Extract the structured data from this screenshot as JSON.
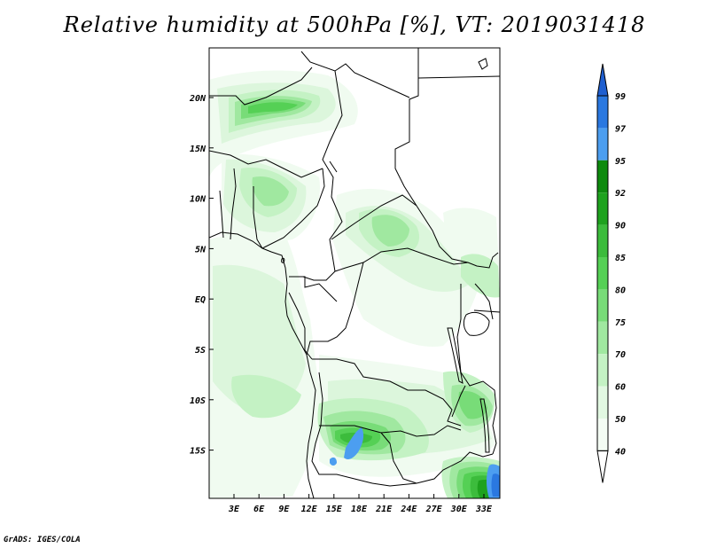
{
  "title": "Relative humidity at 500hPa [%], VT: 2019031418",
  "credit": "GrADS: IGES/COLA",
  "map": {
    "lon_labels": [
      "3E",
      "6E",
      "9E",
      "12E",
      "15E",
      "18E",
      "21E",
      "24E",
      "27E",
      "30E",
      "33E"
    ],
    "lat_labels": [
      "20N",
      "15N",
      "10N",
      "5N",
      "EQ",
      "5S",
      "10S",
      "15S"
    ]
  },
  "colorbar": {
    "labels": [
      "99",
      "97",
      "95",
      "92",
      "90",
      "85",
      "80",
      "75",
      "70",
      "60",
      "50",
      "40"
    ],
    "colors": [
      "#1f5fd0",
      "#2a78e0",
      "#4c9ef0",
      "#0e8a0e",
      "#1ea21e",
      "#3cbc3c",
      "#55d055",
      "#78dc78",
      "#a0e8a0",
      "#c4f2c4",
      "#e2f8e2",
      "#f4fcf4",
      "#ffffff"
    ]
  },
  "shading_colors": {
    "c40": "#f0fbf0",
    "c50": "#dcf6dc",
    "c60": "#c4f2c4",
    "c70": "#a0e8a0",
    "c75": "#78dc78",
    "c80": "#55d055",
    "c85": "#3cbc3c",
    "c90": "#1ea21e",
    "c95": "#4c9ef0",
    "c97": "#2a78e0"
  }
}
